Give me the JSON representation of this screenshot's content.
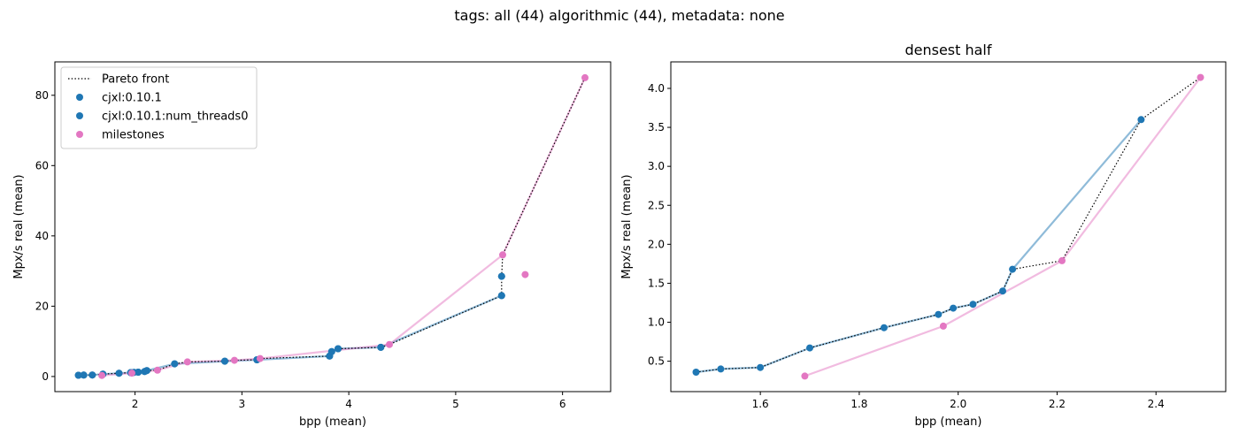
{
  "suptitle": "tags: all (44) algorithmic (44), metadata: none",
  "colors": {
    "cjxl": "#1f77b4",
    "milestones": "#e377c2",
    "pareto": "#000000"
  },
  "chart_data": [
    {
      "type": "scatter",
      "title": "",
      "xlabel": "bpp (mean)",
      "ylabel": "Mpx/s real (mean)",
      "xlim": [
        1.25,
        6.45
      ],
      "ylim": [
        -4.3,
        89.5
      ],
      "xticks": [
        2,
        3,
        4,
        5,
        6
      ],
      "yticks": [
        0,
        20,
        40,
        60,
        80
      ],
      "legend": {
        "placement": "top-left",
        "entries": [
          "Pareto front",
          "cjxl:0.10.1",
          "cjxl:0.10.1:num_threads0",
          "milestones"
        ]
      },
      "series": [
        {
          "name": "cjxl:0.10.1",
          "color": "#1f77b4",
          "points": [
            [
              1.47,
              0.36
            ],
            [
              1.52,
              0.4
            ],
            [
              1.6,
              0.42
            ],
            [
              1.7,
              0.67
            ],
            [
              1.85,
              0.93
            ],
            [
              1.96,
              1.1
            ],
            [
              1.99,
              1.18
            ],
            [
              2.03,
              1.23
            ],
            [
              2.09,
              1.4
            ],
            [
              2.11,
              1.68
            ],
            [
              2.37,
              3.6
            ],
            [
              2.84,
              4.35
            ],
            [
              3.14,
              4.75
            ],
            [
              3.82,
              5.8
            ],
            [
              3.84,
              7.1
            ],
            [
              3.9,
              7.9
            ],
            [
              4.3,
              8.3
            ],
            [
              5.43,
              23.0
            ],
            [
              5.43,
              28.5
            ]
          ]
        },
        {
          "name": "cjxl:0.10.1:num_threads0",
          "color": "#1f77b4",
          "points": [
            [
              1.47,
              0.36
            ],
            [
              1.52,
              0.4
            ],
            [
              1.6,
              0.42
            ],
            [
              1.7,
              0.67
            ],
            [
              1.85,
              0.93
            ],
            [
              1.96,
              1.1
            ],
            [
              1.99,
              1.18
            ],
            [
              2.03,
              1.23
            ],
            [
              2.09,
              1.4
            ],
            [
              2.11,
              1.68
            ],
            [
              2.37,
              3.6
            ],
            [
              2.84,
              4.35
            ],
            [
              3.14,
              4.75
            ],
            [
              3.82,
              5.8
            ],
            [
              3.84,
              7.1
            ],
            [
              3.9,
              7.9
            ],
            [
              4.3,
              8.3
            ],
            [
              5.43,
              23.0
            ],
            [
              5.43,
              28.5
            ]
          ]
        },
        {
          "name": "milestones",
          "color": "#e377c2",
          "points": [
            [
              1.69,
              0.31
            ],
            [
              1.97,
              0.95
            ],
            [
              2.21,
              1.79
            ],
            [
              2.49,
              4.14
            ],
            [
              2.93,
              4.6
            ],
            [
              3.17,
              5.1
            ],
            [
              4.38,
              9.1
            ],
            [
              5.44,
              34.6
            ],
            [
              5.65,
              29.0
            ],
            [
              6.21,
              85.0
            ]
          ]
        }
      ],
      "pareto_front": [
        [
          1.47,
          0.36
        ],
        [
          1.52,
          0.4
        ],
        [
          1.6,
          0.42
        ],
        [
          1.7,
          0.67
        ],
        [
          1.85,
          0.93
        ],
        [
          1.96,
          1.1
        ],
        [
          1.99,
          1.18
        ],
        [
          2.03,
          1.23
        ],
        [
          2.09,
          1.4
        ],
        [
          2.11,
          1.68
        ],
        [
          2.21,
          1.79
        ],
        [
          2.37,
          3.6
        ],
        [
          2.49,
          4.14
        ],
        [
          2.84,
          4.35
        ],
        [
          2.93,
          4.6
        ],
        [
          3.14,
          4.75
        ],
        [
          3.17,
          5.1
        ],
        [
          3.82,
          5.8
        ],
        [
          3.84,
          7.1
        ],
        [
          3.9,
          7.9
        ],
        [
          4.3,
          8.3
        ],
        [
          4.38,
          9.1
        ],
        [
          5.43,
          23.0
        ],
        [
          5.43,
          28.5
        ],
        [
          5.44,
          34.6
        ],
        [
          6.21,
          85.0
        ]
      ],
      "lines": [
        {
          "name": "cjxl:0.10.1",
          "color": "#1f77b4",
          "points": [
            [
              1.47,
              0.36
            ],
            [
              1.52,
              0.4
            ],
            [
              1.6,
              0.42
            ],
            [
              1.7,
              0.67
            ],
            [
              1.85,
              0.93
            ],
            [
              1.96,
              1.1
            ],
            [
              1.99,
              1.18
            ],
            [
              2.03,
              1.23
            ],
            [
              2.09,
              1.4
            ],
            [
              2.11,
              1.68
            ],
            [
              2.37,
              3.6
            ],
            [
              2.84,
              4.35
            ],
            [
              3.14,
              4.75
            ],
            [
              3.82,
              5.8
            ],
            [
              3.84,
              7.1
            ],
            [
              3.9,
              7.9
            ],
            [
              4.3,
              8.3
            ],
            [
              5.43,
              23.0
            ]
          ]
        },
        {
          "name": "milestones",
          "color": "#e377c2",
          "points": [
            [
              1.69,
              0.31
            ],
            [
              1.97,
              0.95
            ],
            [
              2.21,
              1.79
            ],
            [
              2.49,
              4.14
            ],
            [
              2.93,
              4.6
            ],
            [
              3.17,
              5.1
            ],
            [
              4.38,
              9.1
            ],
            [
              5.44,
              34.6
            ],
            [
              6.21,
              85.0
            ]
          ]
        }
      ]
    },
    {
      "type": "scatter",
      "title": "densest half",
      "xlabel": "bpp (mean)",
      "ylabel": "Mpx/s real (mean)",
      "xlim": [
        1.419,
        2.541
      ],
      "ylim": [
        0.11,
        4.34
      ],
      "xticks": [
        1.6,
        1.8,
        2.0,
        2.2,
        2.4
      ],
      "xtick_labels": [
        "1.6",
        "1.8",
        "2.0",
        "2.2",
        "2.4"
      ],
      "yticks": [
        0.5,
        1.0,
        1.5,
        2.0,
        2.5,
        3.0,
        3.5,
        4.0
      ],
      "ytick_labels": [
        "0.5",
        "1.0",
        "1.5",
        "2.0",
        "2.5",
        "3.0",
        "3.5",
        "4.0"
      ],
      "series": [
        {
          "name": "cjxl:0.10.1",
          "color": "#1f77b4",
          "points": [
            [
              1.47,
              0.36
            ],
            [
              1.52,
              0.4
            ],
            [
              1.6,
              0.42
            ],
            [
              1.7,
              0.67
            ],
            [
              1.85,
              0.93
            ],
            [
              1.96,
              1.1
            ],
            [
              1.99,
              1.18
            ],
            [
              2.03,
              1.23
            ],
            [
              2.09,
              1.4
            ],
            [
              2.11,
              1.68
            ],
            [
              2.37,
              3.6
            ]
          ]
        },
        {
          "name": "milestones",
          "color": "#e377c2",
          "points": [
            [
              1.69,
              0.31
            ],
            [
              1.97,
              0.95
            ],
            [
              2.21,
              1.79
            ],
            [
              2.49,
              4.14
            ]
          ]
        }
      ],
      "pareto_front": [
        [
          1.47,
          0.36
        ],
        [
          1.52,
          0.4
        ],
        [
          1.6,
          0.42
        ],
        [
          1.7,
          0.67
        ],
        [
          1.85,
          0.93
        ],
        [
          1.96,
          1.1
        ],
        [
          1.99,
          1.18
        ],
        [
          2.03,
          1.23
        ],
        [
          2.09,
          1.4
        ],
        [
          2.11,
          1.68
        ],
        [
          2.21,
          1.79
        ],
        [
          2.37,
          3.6
        ],
        [
          2.49,
          4.14
        ]
      ],
      "lines": [
        {
          "name": "cjxl:0.10.1",
          "color": "#1f77b4",
          "points": [
            [
              1.47,
              0.36
            ],
            [
              1.52,
              0.4
            ],
            [
              1.6,
              0.42
            ],
            [
              1.7,
              0.67
            ],
            [
              1.85,
              0.93
            ],
            [
              1.96,
              1.1
            ],
            [
              1.99,
              1.18
            ],
            [
              2.03,
              1.23
            ],
            [
              2.09,
              1.4
            ],
            [
              2.11,
              1.68
            ],
            [
              2.37,
              3.6
            ]
          ]
        },
        {
          "name": "milestones",
          "color": "#e377c2",
          "points": [
            [
              1.69,
              0.31
            ],
            [
              1.97,
              0.95
            ],
            [
              2.21,
              1.79
            ],
            [
              2.49,
              4.14
            ]
          ]
        }
      ]
    }
  ]
}
